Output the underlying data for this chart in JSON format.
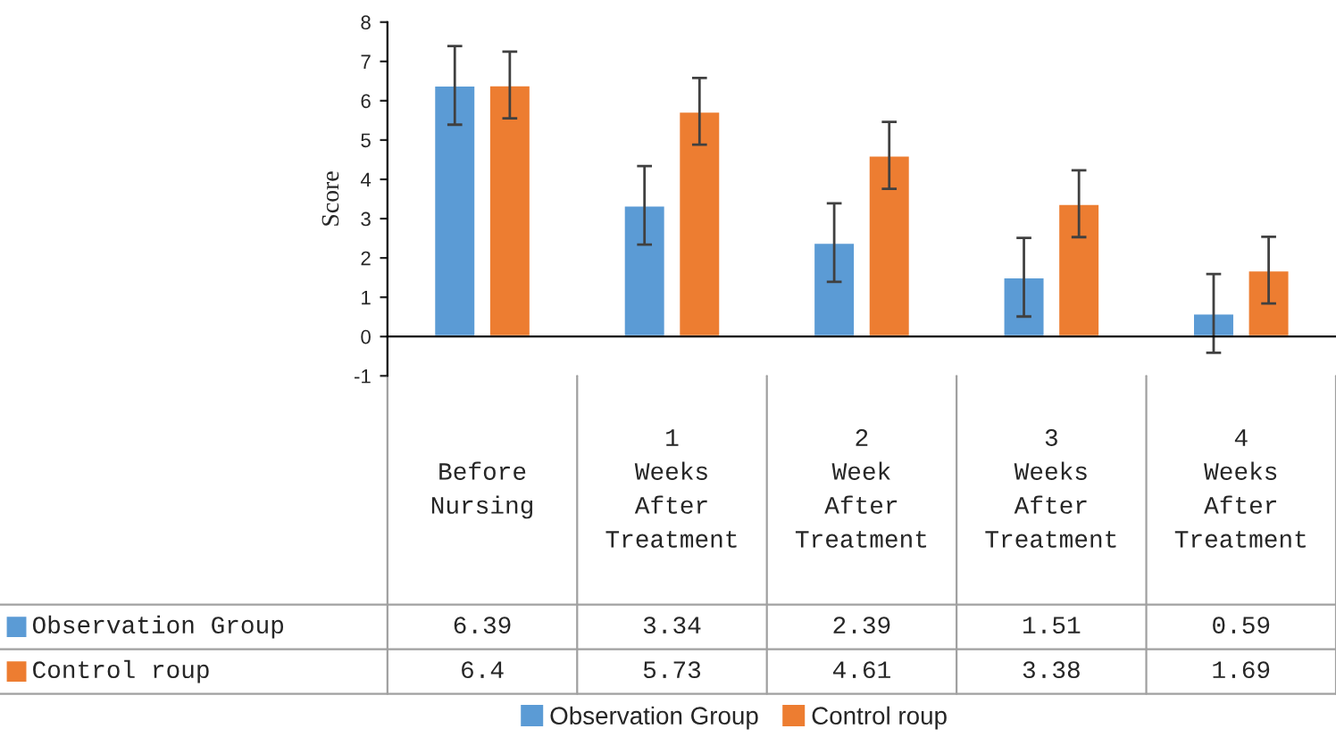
{
  "chart_data": {
    "type": "bar",
    "ylabel": "Score",
    "categories": [
      "Before Nursing",
      "1 Weeks After Treatment",
      "2 Week After Treatment",
      "3 Weeks After Treatment",
      "4 Weeks After Treatment"
    ],
    "series": [
      {
        "name": "Observation Group",
        "color": "#5b9bd5",
        "values": [
          6.39,
          3.34,
          2.39,
          1.51,
          0.59
        ],
        "errors": [
          1.0,
          1.0,
          1.0,
          1.0,
          1.0
        ]
      },
      {
        "name": "Control roup",
        "color": "#ed7d31",
        "values": [
          6.4,
          5.73,
          4.61,
          3.38,
          1.69
        ],
        "errors": [
          0.85,
          0.85,
          0.85,
          0.85,
          0.85
        ]
      }
    ],
    "ylim": [
      -1,
      8
    ],
    "yticks": [
      -1,
      0,
      1,
      2,
      3,
      4,
      5,
      6,
      7,
      8
    ],
    "legend": "bottom",
    "data_labels": true
  }
}
